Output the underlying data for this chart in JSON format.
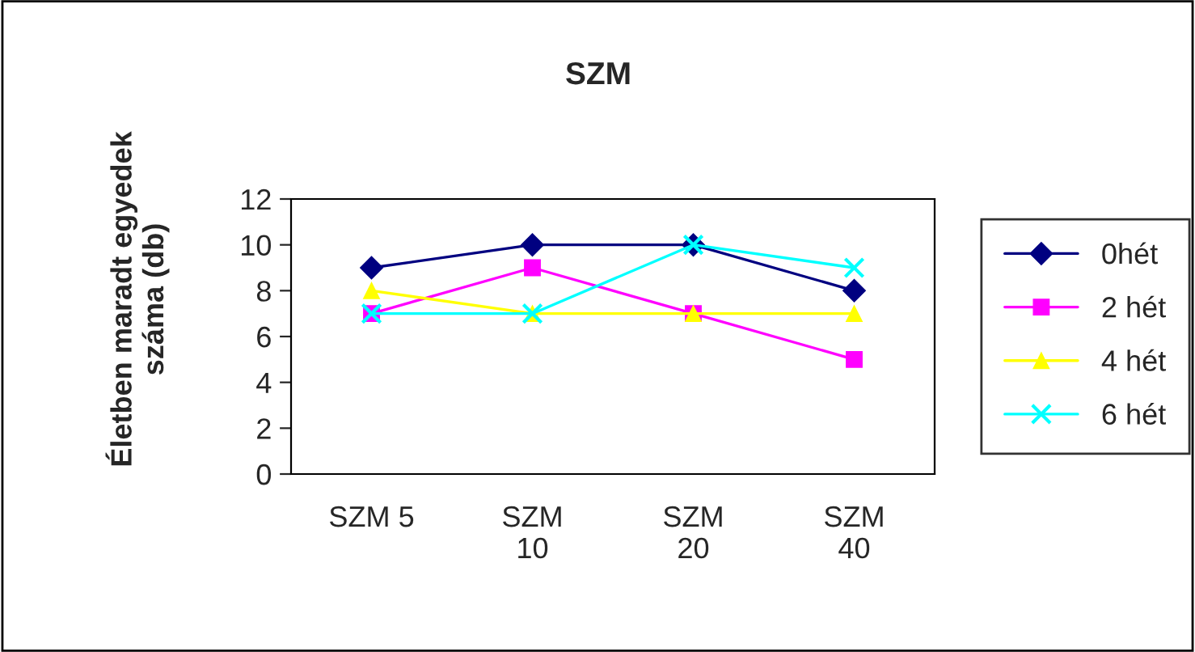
{
  "chart_data": {
    "type": "line",
    "title": "SZM",
    "ylabel": "Életben maradt egyedek\nszáma (db)",
    "categories": [
      "SZM 5",
      "SZM\n10",
      "SZM\n20",
      "SZM\n40"
    ],
    "series": [
      {
        "name": "0hét",
        "color": "#000080",
        "marker": "diamond",
        "values": [
          9,
          10,
          10,
          8
        ]
      },
      {
        "name": "2 hét",
        "color": "#ff00ff",
        "marker": "square",
        "values": [
          7,
          9,
          7,
          5
        ]
      },
      {
        "name": "4 hét",
        "color": "#ffff00",
        "marker": "triangle",
        "values": [
          8,
          7,
          7,
          7
        ]
      },
      {
        "name": "6 hét",
        "color": "#00ffff",
        "marker": "cross",
        "values": [
          7,
          7,
          10,
          9
        ]
      }
    ],
    "ylim": [
      0,
      12
    ],
    "yticks": [
      0,
      2,
      4,
      6,
      8,
      10,
      12
    ],
    "grid": false,
    "legend": "right"
  }
}
